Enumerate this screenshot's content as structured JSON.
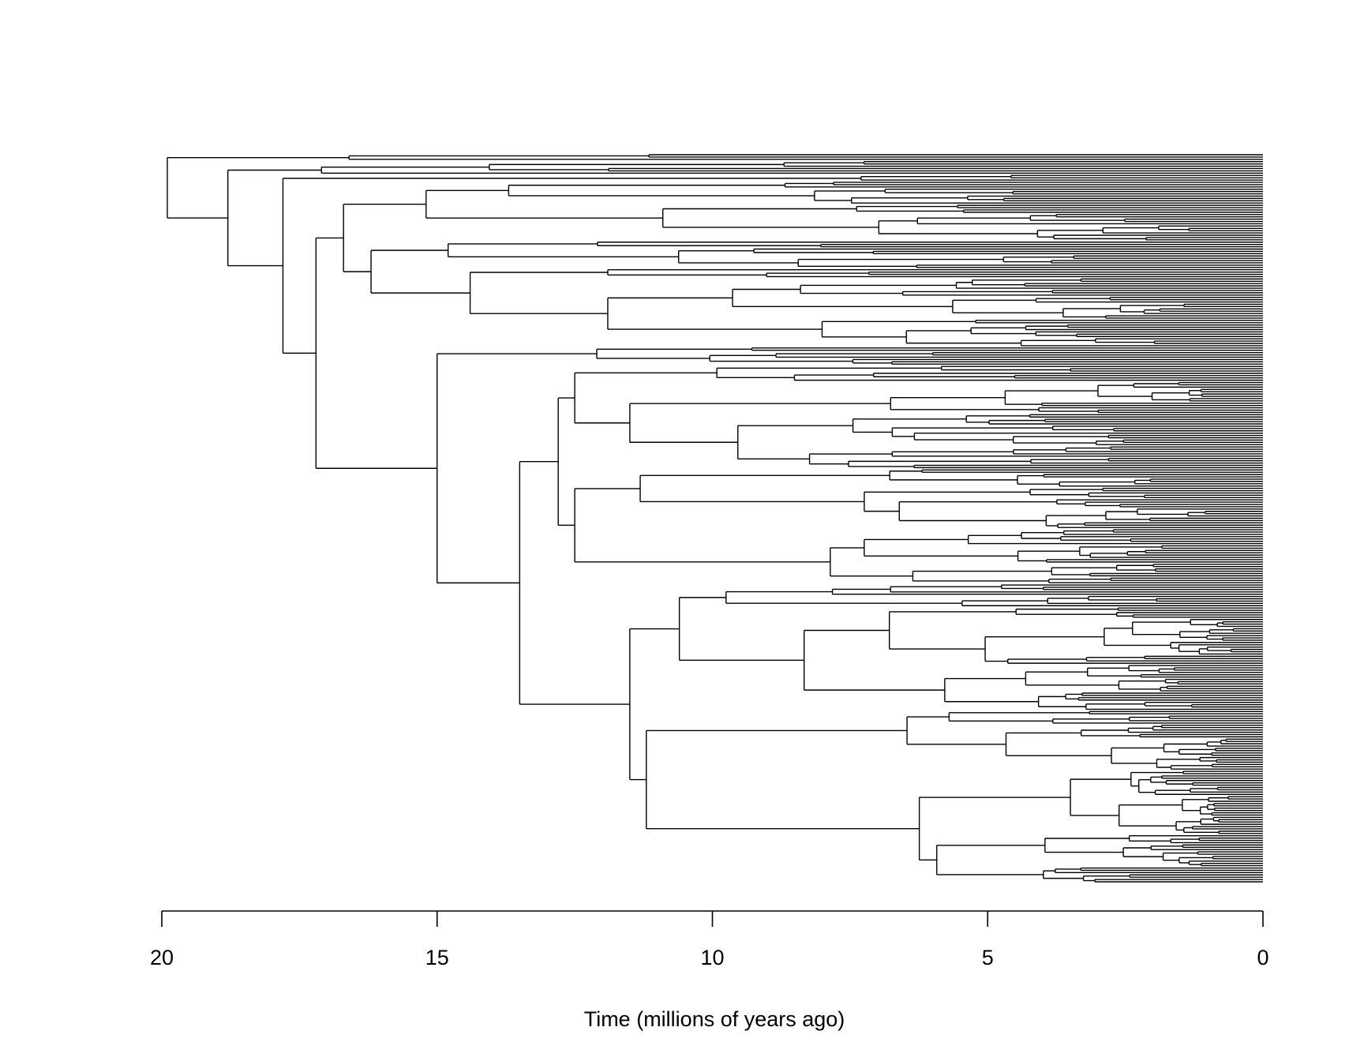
{
  "chart_data": {
    "type": "phylogenetic-tree",
    "xlabel": "Time (millions of years ago)",
    "xlim": [
      20,
      0
    ],
    "x_reversed": true,
    "ticks": [
      20,
      15,
      10,
      5,
      0
    ],
    "tick_labels": [
      "20",
      "15",
      "10",
      "5",
      "0"
    ],
    "grid": false,
    "line_color": "#000000",
    "tree": {
      "t": 19.9,
      "children": [
        {
          "t": 16.6,
          "tips": 3
        },
        {
          "t": 18.8,
          "children": [
            {
              "t": 17.1,
              "tips": 6
            },
            {
              "t": 17.8,
              "children": [
                {
                  "t": 7.3,
                  "tips": 3
                },
                {
                  "t": 17.2,
                  "children": [
                    {
                      "t": 16.7,
                      "children": [
                        {
                          "t": 15.2,
                          "children": [
                            {
                              "t": 13.7,
                              "tips": 10
                            },
                            {
                              "t": 10.9,
                              "tips": 16
                            }
                          ]
                        },
                        {
                          "t": 16.2,
                          "children": [
                            {
                              "t": 14.8,
                              "tips": 12
                            },
                            {
                              "t": 14.4,
                              "children": [
                                {
                                  "t": 11.9,
                                  "tips": 4
                                },
                                {
                                  "t": 11.9,
                                  "tips": 30
                                }
                              ]
                            }
                          ]
                        }
                      ]
                    },
                    {
                      "t": 15.0,
                      "children": [
                        {
                          "t": 12.1,
                          "tips": 8
                        },
                        {
                          "t": 13.5,
                          "children": [
                            {
                              "t": 12.8,
                              "children": [
                                {
                                  "t": 12.5,
                                  "tips": 45
                                },
                                {
                                  "t": 12.5,
                                  "tips": 50
                                }
                              ]
                            },
                            {
                              "t": 11.5,
                              "children": [
                                {
                                  "t": 10.6,
                                  "tips": 55
                                },
                                {
                                  "t": 11.2,
                                  "tips": 75
                                }
                              ]
                            }
                          ]
                        }
                      ]
                    }
                  ]
                }
              ]
            }
          ]
        }
      ]
    }
  }
}
